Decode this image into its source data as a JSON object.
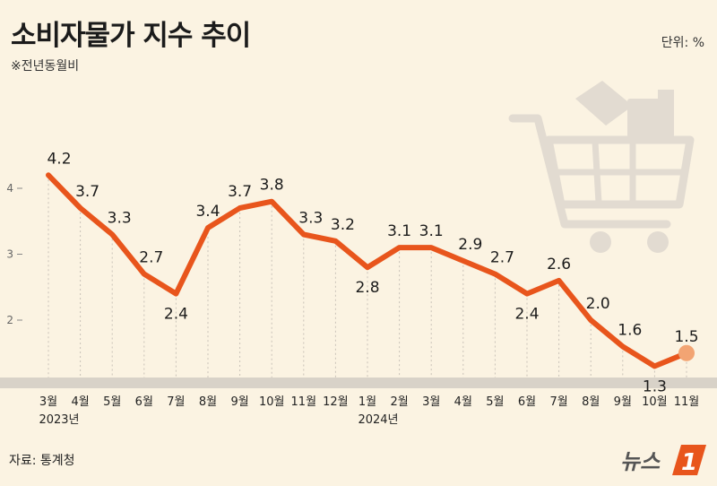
{
  "header": {
    "title": "소비자물가 지수 추이",
    "subtitle": "※전년동월비",
    "unit": "단위: %"
  },
  "footer": {
    "source": "자료: 통계청",
    "logo_text": "뉴스"
  },
  "colors": {
    "line": "#e8551c",
    "background": "#fbf3e2",
    "cart": "#e2dbd1"
  },
  "chart_data": {
    "type": "line",
    "title": "소비자물가 지수 추이",
    "subtitle": "※전년동월비",
    "unit": "%",
    "categories": [
      "3월",
      "4월",
      "5월",
      "6월",
      "7월",
      "8월",
      "9월",
      "10월",
      "11월",
      "12월",
      "1월",
      "2월",
      "3월",
      "4월",
      "5월",
      "6월",
      "7월",
      "8월",
      "9월",
      "10월",
      "11월"
    ],
    "year_labels": [
      {
        "index": 0,
        "label": "2023년"
      },
      {
        "index": 10,
        "label": "2024년"
      }
    ],
    "values": [
      4.2,
      3.7,
      3.3,
      2.7,
      2.4,
      3.4,
      3.7,
      3.8,
      3.3,
      3.2,
      2.8,
      3.1,
      3.1,
      2.9,
      2.7,
      2.4,
      2.6,
      2.0,
      1.6,
      1.3,
      1.5
    ],
    "value_labels": [
      "4.2",
      "3.7",
      "3.3",
      "2.7",
      "2.4",
      "3.4",
      "3.7",
      "3.8",
      "3.3",
      "3.2",
      "2.8",
      "3.1",
      "3.1",
      "2.9",
      "2.7",
      "2.4",
      "2.6",
      "2.0",
      "1.6",
      "1.3",
      "1.5"
    ],
    "yticks": [
      "2",
      "3",
      "4"
    ],
    "ylim": [
      1.0,
      4.6
    ],
    "grid": "vertical-dotted"
  }
}
